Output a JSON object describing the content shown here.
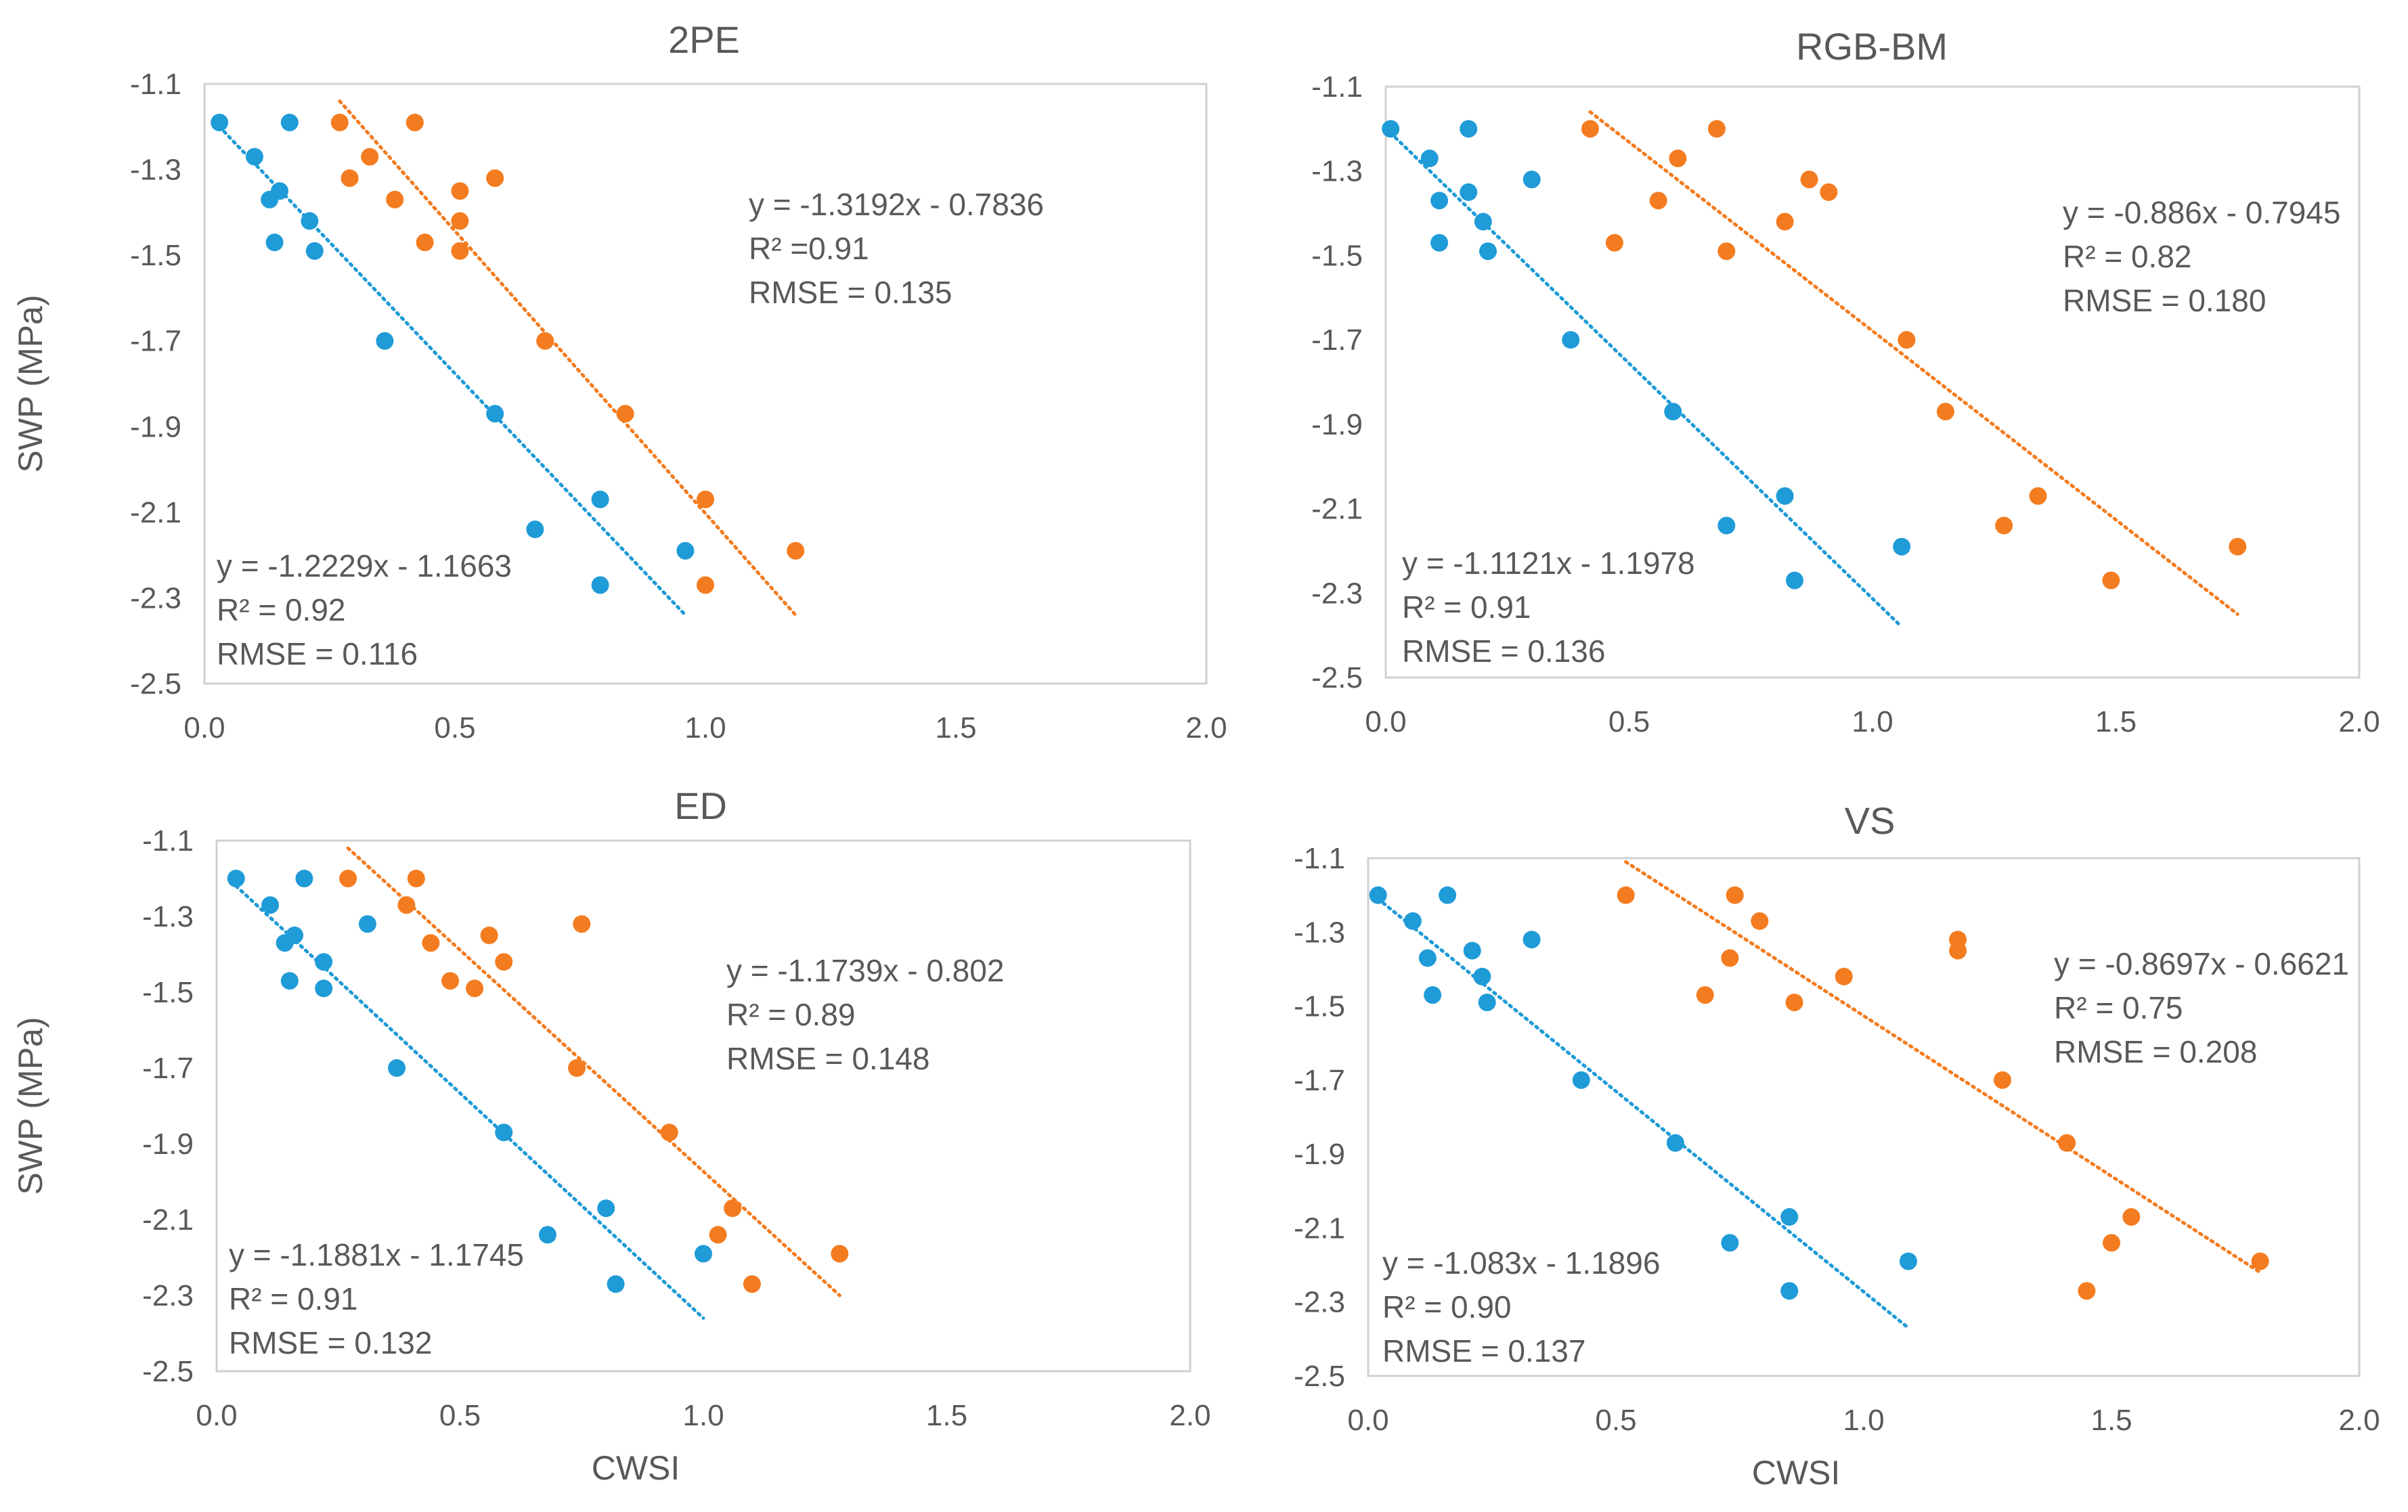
{
  "colors": {
    "blue": "#1f9bd7",
    "orange": "#f47c20",
    "text": "#595959",
    "frame": "#d0d0d0"
  },
  "chart_data": [
    {
      "type": "scatter",
      "title": "2PE",
      "xlabel": "",
      "ylabel": "SWP (MPa)",
      "xlim": [
        0,
        2
      ],
      "ylim": [
        -2.5,
        -1.1
      ],
      "xticks": [
        "0.0",
        "0.5",
        "1.0",
        "1.5",
        "2.0"
      ],
      "yticks": [
        "-1.1",
        "-1.3",
        "-1.5",
        "-1.7",
        "-1.9",
        "-2.1",
        "-2.3",
        "-2.5"
      ],
      "series": [
        {
          "name": "blue",
          "color": "#1f9bd7",
          "x": [
            0.03,
            0.1,
            0.13,
            0.15,
            0.17,
            0.14,
            0.21,
            0.22,
            0.36,
            0.58,
            0.66,
            0.79,
            0.79,
            0.96
          ],
          "y": [
            -1.19,
            -1.27,
            -1.37,
            -1.35,
            -1.19,
            -1.47,
            -1.42,
            -1.49,
            -1.7,
            -1.87,
            -2.14,
            -2.07,
            -2.27,
            -2.19
          ],
          "trendline": {
            "x": [
              0.03,
              0.96
            ],
            "y": [
              -1.2,
              -2.34
            ]
          },
          "equation": "y = -1.2229x - 1.1663",
          "r2": "R² = 0.92",
          "rmse": "RMSE = 0.116"
        },
        {
          "name": "orange",
          "color": "#f47c20",
          "x": [
            0.27,
            0.29,
            0.33,
            0.38,
            0.42,
            0.44,
            0.51,
            0.51,
            0.51,
            0.58,
            0.68,
            0.84,
            1.0,
            1.0,
            1.18
          ],
          "y": [
            -1.19,
            -1.32,
            -1.27,
            -1.37,
            -1.19,
            -1.47,
            -1.35,
            -1.42,
            -1.49,
            -1.32,
            -1.7,
            -1.87,
            -2.07,
            -2.27,
            -2.19
          ],
          "trendline": {
            "x": [
              0.27,
              1.18
            ],
            "y": [
              -1.14,
              -2.34
            ]
          },
          "equation": "y = -1.3192x - 0.7836",
          "r2": "R² =0.91",
          "rmse": "RMSE = 0.135"
        }
      ]
    },
    {
      "type": "scatter",
      "title": "RGB-BM",
      "xlabel": "",
      "ylabel": "",
      "xlim": [
        0,
        2
      ],
      "ylim": [
        -2.5,
        -1.1
      ],
      "xticks": [
        "0.0",
        "0.5",
        "1.0",
        "1.5",
        "2.0"
      ],
      "yticks": [
        "-1.1",
        "-1.3",
        "-1.5",
        "-1.7",
        "-1.9",
        "-2.1",
        "-2.3",
        "-2.5"
      ],
      "series": [
        {
          "name": "blue",
          "color": "#1f9bd7",
          "x": [
            0.01,
            0.09,
            0.11,
            0.17,
            0.17,
            0.11,
            0.2,
            0.21,
            0.3,
            0.38,
            0.59,
            0.7,
            0.82,
            0.84,
            1.06
          ],
          "y": [
            -1.2,
            -1.27,
            -1.37,
            -1.35,
            -1.2,
            -1.47,
            -1.42,
            -1.49,
            -1.32,
            -1.7,
            -1.87,
            -2.14,
            -2.07,
            -2.27,
            -2.19
          ],
          "trendline": {
            "x": [
              0.01,
              1.06
            ],
            "y": [
              -1.21,
              -2.38
            ]
          },
          "equation": "y = -1.1121x - 1.1978",
          "r2": "R² = 0.91",
          "rmse": "RMSE = 0.136"
        },
        {
          "name": "orange",
          "color": "#f47c20",
          "x": [
            0.42,
            0.47,
            0.56,
            0.6,
            0.68,
            0.7,
            0.82,
            0.87,
            0.91,
            1.07,
            1.15,
            1.27,
            1.34,
            1.49,
            1.75
          ],
          "y": [
            -1.2,
            -1.47,
            -1.37,
            -1.27,
            -1.2,
            -1.49,
            -1.42,
            -1.32,
            -1.35,
            -1.7,
            -1.87,
            -2.14,
            -2.07,
            -2.27,
            -2.19
          ],
          "trendline": {
            "x": [
              0.42,
              1.75
            ],
            "y": [
              -1.16,
              -2.35
            ]
          },
          "equation": "y = -0.886x - 0.7945",
          "r2": "R² = 0.82",
          "rmse": "RMSE = 0.180"
        }
      ]
    },
    {
      "type": "scatter",
      "title": "ED",
      "xlabel": "CWSI",
      "ylabel": "SWP (MPa)",
      "xlim": [
        0,
        2
      ],
      "ylim": [
        -2.5,
        -1.1
      ],
      "xticks": [
        "0.0",
        "0.5",
        "1.0",
        "1.5",
        "2.0"
      ],
      "yticks": [
        "-1.1",
        "-1.3",
        "-1.5",
        "-1.7",
        "-1.9",
        "-2.1",
        "-2.3",
        "-2.5"
      ],
      "series": [
        {
          "name": "blue",
          "color": "#1f9bd7",
          "x": [
            0.04,
            0.11,
            0.14,
            0.16,
            0.18,
            0.15,
            0.22,
            0.22,
            0.31,
            0.37,
            0.59,
            0.68,
            0.8,
            0.82,
            1.0
          ],
          "y": [
            -1.2,
            -1.27,
            -1.37,
            -1.35,
            -1.2,
            -1.47,
            -1.42,
            -1.49,
            -1.32,
            -1.7,
            -1.87,
            -2.14,
            -2.07,
            -2.27,
            -2.19
          ],
          "trendline": {
            "x": [
              0.04,
              1.0
            ],
            "y": [
              -1.22,
              -2.36
            ]
          },
          "equation": "y = -1.1881x - 1.1745",
          "r2": "R² = 0.91",
          "rmse": "RMSE = 0.132"
        },
        {
          "name": "orange",
          "color": "#f47c20",
          "x": [
            0.27,
            0.41,
            0.39,
            0.44,
            0.48,
            0.53,
            0.56,
            0.59,
            0.74,
            0.75,
            0.93,
            1.03,
            1.06,
            1.1,
            1.28
          ],
          "y": [
            -1.2,
            -1.2,
            -1.27,
            -1.37,
            -1.47,
            -1.49,
            -1.35,
            -1.42,
            -1.7,
            -1.32,
            -1.87,
            -2.14,
            -2.07,
            -2.27,
            -2.19
          ],
          "trendline": {
            "x": [
              0.27,
              1.28
            ],
            "y": [
              -1.12,
              -2.3
            ]
          },
          "equation": "y = -1.1739x - 0.802",
          "r2": "R² = 0.89",
          "rmse": "RMSE = 0.148"
        }
      ]
    },
    {
      "type": "scatter",
      "title": "VS",
      "xlabel": "CWSI",
      "ylabel": "",
      "xlim": [
        0,
        2
      ],
      "ylim": [
        -2.5,
        -1.1
      ],
      "xticks": [
        "0.0",
        "0.5",
        "1.0",
        "1.5",
        "2.0"
      ],
      "yticks": [
        "-1.1",
        "-1.3",
        "-1.5",
        "-1.7",
        "-1.9",
        "-2.1",
        "-2.3",
        "-2.5"
      ],
      "series": [
        {
          "name": "blue",
          "color": "#1f9bd7",
          "x": [
            0.02,
            0.09,
            0.12,
            0.13,
            0.16,
            0.21,
            0.23,
            0.24,
            0.33,
            0.43,
            0.62,
            0.73,
            0.85,
            0.85,
            1.09
          ],
          "y": [
            -1.2,
            -1.27,
            -1.37,
            -1.47,
            -1.2,
            -1.35,
            -1.42,
            -1.49,
            -1.32,
            -1.7,
            -1.87,
            -2.14,
            -2.07,
            -2.27,
            -2.19
          ],
          "trendline": {
            "x": [
              0.02,
              1.09
            ],
            "y": [
              -1.21,
              -2.37
            ]
          },
          "equation": "y = -1.083x - 1.1896",
          "r2": "R² = 0.90",
          "rmse": "RMSE = 0.137"
        },
        {
          "name": "orange",
          "color": "#f47c20",
          "x": [
            0.52,
            0.68,
            0.73,
            0.74,
            0.79,
            0.86,
            0.96,
            1.19,
            1.19,
            1.28,
            1.41,
            1.45,
            1.5,
            1.54,
            1.8
          ],
          "y": [
            -1.2,
            -1.47,
            -1.37,
            -1.2,
            -1.27,
            -1.49,
            -1.42,
            -1.32,
            -1.35,
            -1.7,
            -1.87,
            -2.27,
            -2.14,
            -2.07,
            -2.19
          ],
          "trendline": {
            "x": [
              0.52,
              1.8
            ],
            "y": [
              -1.11,
              -2.22
            ]
          },
          "equation": "y = -0.8697x - 0.6621",
          "r2": "R² = 0.75",
          "rmse": "RMSE = 0.208"
        }
      ]
    }
  ]
}
